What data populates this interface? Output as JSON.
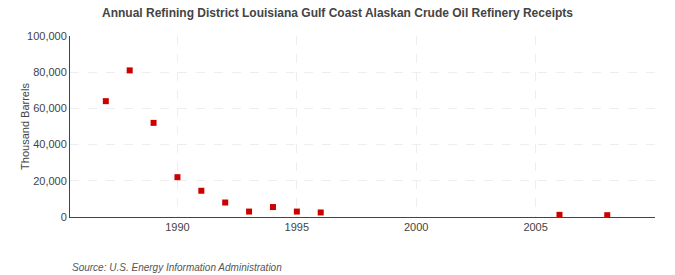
{
  "chart_data": {
    "type": "scatter",
    "title": "Annual Refining District Louisiana Gulf Coast Alaskan Crude Oil Refinery Receipts",
    "ylabel": "Thousand Barrels",
    "annotations": [
      "Source: U.S. Energy Information Administration"
    ],
    "x": [
      1987,
      1988,
      1989,
      1990,
      1991,
      1992,
      1993,
      1994,
      1995,
      1996,
      2006,
      2008
    ],
    "values": [
      64000,
      81000,
      52000,
      22000,
      14500,
      8000,
      3000,
      5500,
      3000,
      2500,
      1200,
      1000
    ],
    "color": "#CC0000",
    "marker": "square",
    "xlim": [
      1985.5,
      2010
    ],
    "ylim": [
      0,
      100000
    ],
    "xticks": [
      1990,
      1995,
      2000,
      2005
    ],
    "yticks": [
      0,
      {
        "value": 20000,
        "label": "20,000"
      },
      {
        "value": 40000,
        "label": "40,000"
      },
      {
        "value": 60000,
        "label": "60,000"
      },
      {
        "value": 80000,
        "label": "80,000"
      },
      {
        "value": 100000,
        "label": "100,000"
      }
    ],
    "grid": true
  }
}
